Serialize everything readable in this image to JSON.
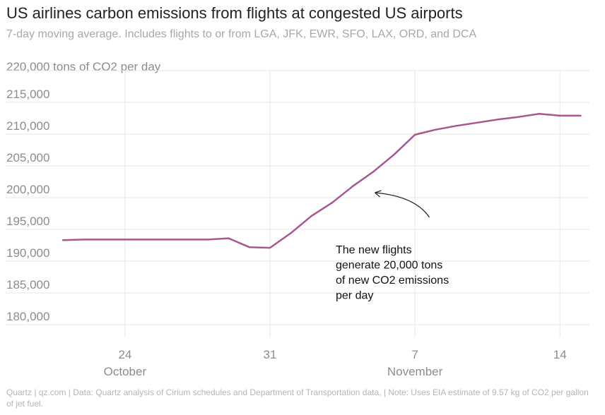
{
  "title": "US airlines carbon emissions from flights at congested US airports",
  "subtitle": "7-day moving average. Includes flights to or from LGA, JFK, EWR, SFO, LAX, ORD, and DCA",
  "y_unit_label": "220,000 tons of CO2 per day",
  "footer": "Quartz | qz.com | Data: Quartz analysis of Cirium schedules and Department of Transportation data, | Note: Uses EIA estimate of 9.57 kg of CO2 per gallon of jet fuel.",
  "chart_data": {
    "type": "line",
    "title": "US airlines carbon emissions from flights at congested US airports",
    "subtitle": "7-day moving average. Includes flights to or from LGA, JFK, EWR, SFO, LAX, ORD, and DCA",
    "ylabel": "tons of CO2 per day",
    "ylim": [
      178000,
      220000
    ],
    "y_ticks": [
      {
        "value": 180000,
        "label": "180,000"
      },
      {
        "value": 185000,
        "label": "185,000"
      },
      {
        "value": 190000,
        "label": "190,000"
      },
      {
        "value": 195000,
        "label": "195,000"
      },
      {
        "value": 200000,
        "label": "200,000"
      },
      {
        "value": 205000,
        "label": "205,000"
      },
      {
        "value": 210000,
        "label": "210,000"
      },
      {
        "value": 215000,
        "label": "215,000"
      },
      {
        "value": 220000,
        "label": "220,000 tons of CO2 per day"
      }
    ],
    "x_ticks": [
      {
        "date": "Oct 24",
        "label": "24"
      },
      {
        "date": "Oct 31",
        "label": "31"
      },
      {
        "date": "Nov 7",
        "label": "7"
      },
      {
        "date": "Nov 14",
        "label": "14"
      }
    ],
    "x_month_labels": [
      {
        "date": "Oct 24",
        "label": "October"
      },
      {
        "date": "Nov 7",
        "label": "November"
      }
    ],
    "grid": true,
    "color": "#a8568f",
    "series": [
      {
        "x": [
          "Oct 21",
          "Oct 22",
          "Oct 23",
          "Oct 24",
          "Oct 25",
          "Oct 26",
          "Oct 27",
          "Oct 28",
          "Oct 29",
          "Oct 30",
          "Oct 31",
          "Nov 1",
          "Nov 2",
          "Nov 3",
          "Nov 4",
          "Nov 5",
          "Nov 6",
          "Nov 7",
          "Nov 8",
          "Nov 9",
          "Nov 10",
          "Nov 11",
          "Nov 12",
          "Nov 13",
          "Nov 14",
          "Nov 15"
        ],
        "values": [
          193300,
          193400,
          193400,
          193400,
          193400,
          193400,
          193400,
          193400,
          193600,
          192200,
          192100,
          194400,
          197100,
          199200,
          201800,
          204100,
          206800,
          209900,
          210700,
          211300,
          211800,
          212300,
          212700,
          213200,
          212900,
          212900
        ]
      }
    ],
    "annotation": {
      "lines": [
        "The new flights",
        "generate 20,000 tons",
        "of new CO2 emissions",
        "per day"
      ],
      "points_to": {
        "date": "Nov 5",
        "value": 201000
      }
    }
  }
}
